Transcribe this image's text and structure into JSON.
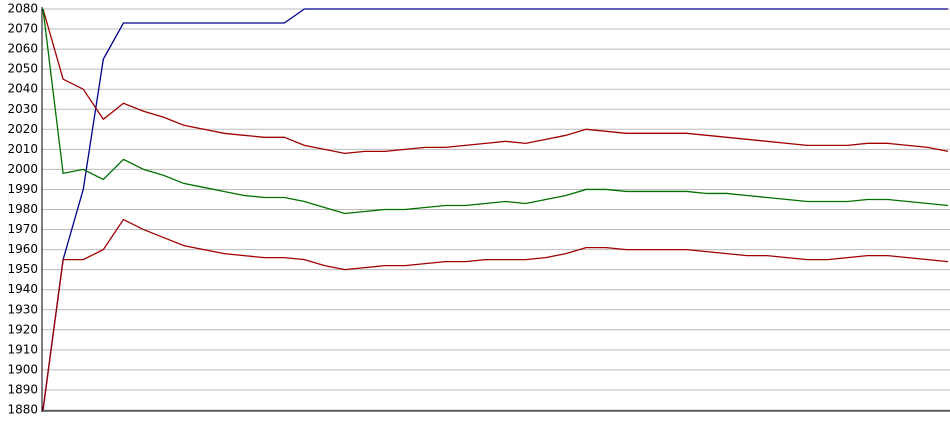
{
  "chart_data": {
    "type": "line",
    "categories": [
      null,
      null,
      null,
      null,
      null,
      null,
      null,
      null,
      null,
      null,
      null,
      null,
      null,
      null,
      null,
      null,
      null,
      null,
      null,
      null,
      null,
      null,
      null,
      null,
      null,
      null,
      null,
      null,
      null,
      null,
      null,
      null,
      null,
      null,
      null,
      null,
      null,
      null,
      null,
      null,
      null,
      null,
      null,
      null,
      null,
      null
    ],
    "series": [
      {
        "color": "#00008b",
        "values": [
          1880,
          1955,
          1990,
          2055,
          2073,
          2073,
          2073,
          2073,
          2073,
          2073,
          2073,
          2073,
          2073,
          2080,
          2080,
          2080,
          2080,
          2080,
          2080,
          2080,
          2080,
          2080,
          2080,
          2080,
          2080,
          2080,
          2080,
          2080,
          2080,
          2080,
          2080,
          2080,
          2080,
          2080,
          2080,
          2080,
          2080,
          2080,
          2080,
          2080,
          2080,
          2080,
          2080,
          2080,
          2080,
          2080
        ]
      },
      {
        "color": "#a00000",
        "values": [
          2080,
          2045,
          2040,
          2025,
          2033,
          2029,
          2026,
          2022,
          2020,
          2018,
          2017,
          2016,
          2016,
          2012,
          2010,
          2008,
          2009,
          2009,
          2010,
          2011,
          2011,
          2012,
          2013,
          2014,
          2013,
          2015,
          2017,
          2020,
          2019,
          2018,
          2018,
          2018,
          2018,
          2017,
          2016,
          2015,
          2014,
          2013,
          2012,
          2012,
          2012,
          2013,
          2013,
          2012,
          2011,
          2009
        ]
      },
      {
        "color": "#007000",
        "values": [
          2080,
          1998,
          2000,
          1995,
          2005,
          2000,
          1997,
          1993,
          1991,
          1989,
          1987,
          1986,
          1986,
          1984,
          1981,
          1978,
          1979,
          1980,
          1980,
          1981,
          1982,
          1982,
          1983,
          1984,
          1983,
          1985,
          1987,
          1990,
          1990,
          1989,
          1989,
          1989,
          1989,
          1988,
          1988,
          1987,
          1986,
          1985,
          1984,
          1984,
          1984,
          1985,
          1985,
          1984,
          1983,
          1982
        ]
      },
      {
        "color": "#a00000",
        "values": [
          1880,
          1955,
          1955,
          1960,
          1975,
          1970,
          1966,
          1962,
          1960,
          1958,
          1957,
          1956,
          1956,
          1955,
          1952,
          1950,
          1951,
          1952,
          1952,
          1953,
          1954,
          1954,
          1955,
          1955,
          1955,
          1956,
          1958,
          1961,
          1961,
          1960,
          1960,
          1960,
          1960,
          1959,
          1958,
          1957,
          1957,
          1956,
          1955,
          1955,
          1956,
          1957,
          1957,
          1956,
          1955,
          1954
        ]
      }
    ],
    "ylim": [
      1880,
      2080
    ],
    "yticks": [
      1880,
      1890,
      1900,
      1910,
      1920,
      1930,
      1940,
      1950,
      1960,
      1970,
      1980,
      1990,
      2000,
      2010,
      2020,
      2030,
      2040,
      2050,
      2060,
      2070,
      2080
    ],
    "grid": true
  }
}
